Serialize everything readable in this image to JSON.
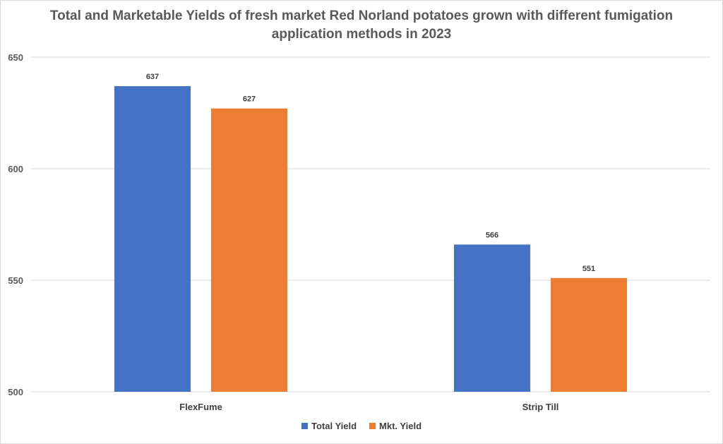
{
  "chart_data": {
    "type": "bar",
    "title": "Total and Marketable Yields of fresh market Red Norland potatoes grown with different fumigation application methods in 2023",
    "categories": [
      "FlexFume",
      "Strip Till"
    ],
    "series": [
      {
        "name": "Total Yield",
        "values": [
          637,
          566
        ],
        "color": "#4472c4"
      },
      {
        "name": "Mkt. Yield",
        "values": [
          627,
          551
        ],
        "color": "#ed7d31"
      }
    ],
    "ylim": [
      500,
      650
    ],
    "yticks": [
      500,
      550,
      600,
      650
    ],
    "grid": true,
    "legend": "bottom"
  }
}
